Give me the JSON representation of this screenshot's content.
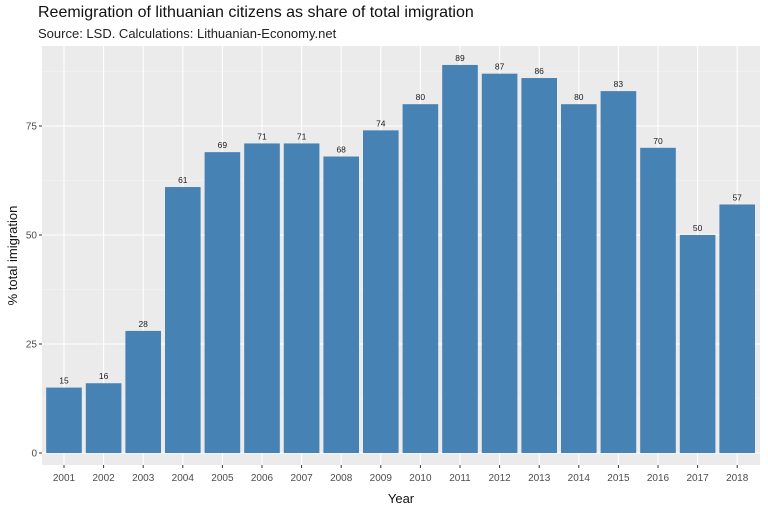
{
  "title": "Reemigration of lithuanian citizens as share of total imigration",
  "subtitle": "Source: LSD. Calculations: Lithuanian-Economy.net",
  "colors": {
    "panel_background": "#ebebeb",
    "grid_major": "#ffffff",
    "bar_fill": "#4682b4"
  },
  "chart_data": {
    "type": "bar",
    "title": "Reemigration of lithuanian citizens as share of total imigration",
    "subtitle": "Source: LSD. Calculations: Lithuanian-Economy.net",
    "xlabel": "Year",
    "ylabel": "% total imigration",
    "categories": [
      "2001",
      "2002",
      "2003",
      "2004",
      "2005",
      "2006",
      "2007",
      "2008",
      "2009",
      "2010",
      "2011",
      "2012",
      "2013",
      "2014",
      "2015",
      "2016",
      "2017",
      "2018"
    ],
    "values": [
      15,
      16,
      28,
      61,
      69,
      71,
      71,
      68,
      74,
      80,
      89,
      87,
      86,
      80,
      83,
      70,
      50,
      57
    ],
    "data_labels": [
      "15",
      "16",
      "28",
      "61",
      "69",
      "71",
      "71",
      "68",
      "74",
      "80",
      "89",
      "87",
      "86",
      "80",
      "83",
      "70",
      "50",
      "57"
    ],
    "yticks": [
      0,
      25,
      50,
      75
    ],
    "ylim": [
      0,
      93
    ],
    "grid": true,
    "legend": "none"
  }
}
